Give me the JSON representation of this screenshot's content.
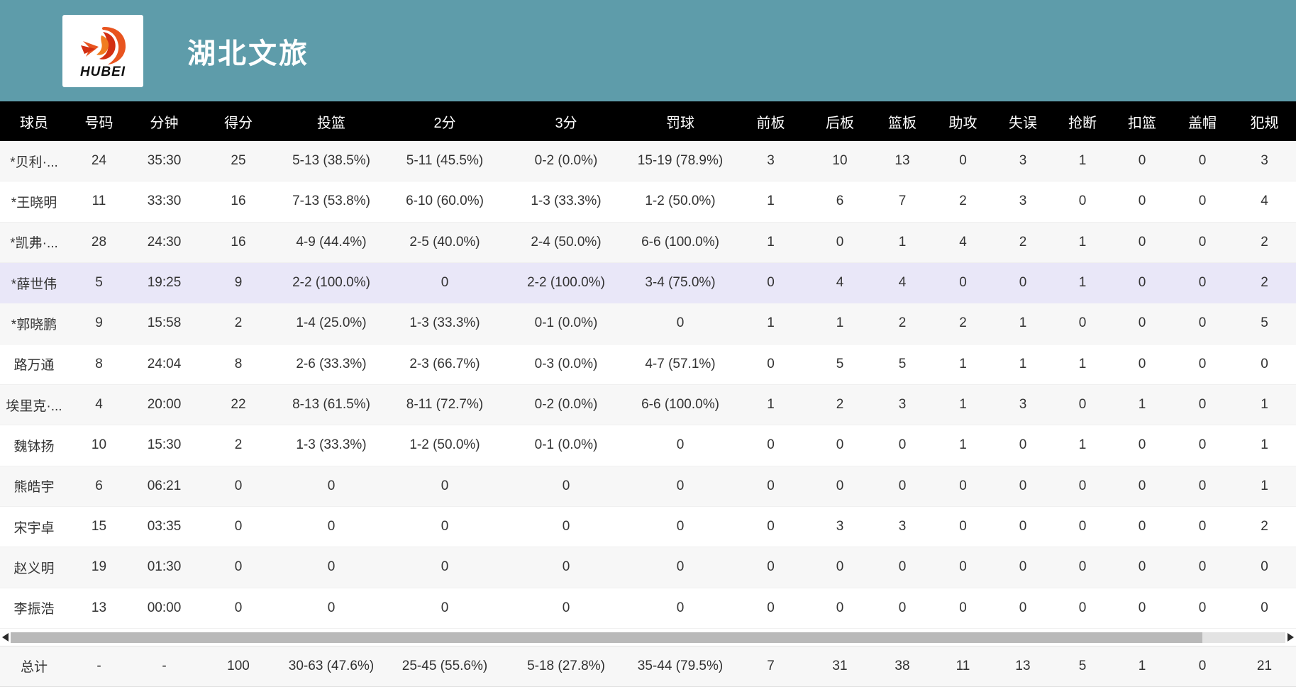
{
  "header": {
    "team_name": "湖北文旅",
    "logo_text": "HUBEI",
    "banner_color": "#5e9caa",
    "accent_orange": "#e8541f",
    "accent_red": "#d32f12"
  },
  "table": {
    "columns": [
      {
        "key": "player",
        "label": "球员"
      },
      {
        "key": "number",
        "label": "号码"
      },
      {
        "key": "minutes",
        "label": "分钟"
      },
      {
        "key": "points",
        "label": "得分"
      },
      {
        "key": "fg",
        "label": "投篮"
      },
      {
        "key": "two-pt",
        "label": "2分"
      },
      {
        "key": "three-pt",
        "label": "3分"
      },
      {
        "key": "ft",
        "label": "罚球"
      },
      {
        "key": "off-reb",
        "label": "前板"
      },
      {
        "key": "def-reb",
        "label": "后板"
      },
      {
        "key": "reb",
        "label": "篮板"
      },
      {
        "key": "ast",
        "label": "助攻"
      },
      {
        "key": "turnovers",
        "label": "失误"
      },
      {
        "key": "stl",
        "label": "抢断"
      },
      {
        "key": "dunk",
        "label": "扣篮"
      },
      {
        "key": "blk",
        "label": "盖帽"
      },
      {
        "key": "fouls",
        "label": "犯规"
      }
    ],
    "highlighted_row": 3,
    "highlight_color": "#e9e7f8",
    "rows": [
      [
        "*贝利·...",
        "24",
        "35:30",
        "25",
        "5-13 (38.5%)",
        "5-11 (45.5%)",
        "0-2 (0.0%)",
        "15-19 (78.9%)",
        "3",
        "10",
        "13",
        "0",
        "3",
        "1",
        "0",
        "0",
        "3"
      ],
      [
        "*王晓明",
        "11",
        "33:30",
        "16",
        "7-13 (53.8%)",
        "6-10 (60.0%)",
        "1-3 (33.3%)",
        "1-2 (50.0%)",
        "1",
        "6",
        "7",
        "2",
        "3",
        "0",
        "0",
        "0",
        "4"
      ],
      [
        "*凯弗·...",
        "28",
        "24:30",
        "16",
        "4-9 (44.4%)",
        "2-5 (40.0%)",
        "2-4 (50.0%)",
        "6-6 (100.0%)",
        "1",
        "0",
        "1",
        "4",
        "2",
        "1",
        "0",
        "0",
        "2"
      ],
      [
        "*薛世伟",
        "5",
        "19:25",
        "9",
        "2-2 (100.0%)",
        "0",
        "2-2 (100.0%)",
        "3-4 (75.0%)",
        "0",
        "4",
        "4",
        "0",
        "0",
        "1",
        "0",
        "0",
        "2"
      ],
      [
        "*郭晓鹏",
        "9",
        "15:58",
        "2",
        "1-4 (25.0%)",
        "1-3 (33.3%)",
        "0-1 (0.0%)",
        "0",
        "1",
        "1",
        "2",
        "2",
        "1",
        "0",
        "0",
        "0",
        "5"
      ],
      [
        "路万通",
        "8",
        "24:04",
        "8",
        "2-6 (33.3%)",
        "2-3 (66.7%)",
        "0-3 (0.0%)",
        "4-7 (57.1%)",
        "0",
        "5",
        "5",
        "1",
        "1",
        "1",
        "0",
        "0",
        "0"
      ],
      [
        "埃里克·...",
        "4",
        "20:00",
        "22",
        "8-13 (61.5%)",
        "8-11 (72.7%)",
        "0-2 (0.0%)",
        "6-6 (100.0%)",
        "1",
        "2",
        "3",
        "1",
        "3",
        "0",
        "1",
        "0",
        "1"
      ],
      [
        "魏钵扬",
        "10",
        "15:30",
        "2",
        "1-3 (33.3%)",
        "1-2 (50.0%)",
        "0-1 (0.0%)",
        "0",
        "0",
        "0",
        "0",
        "1",
        "0",
        "1",
        "0",
        "0",
        "1"
      ],
      [
        "熊皓宇",
        "6",
        "06:21",
        "0",
        "0",
        "0",
        "0",
        "0",
        "0",
        "0",
        "0",
        "0",
        "0",
        "0",
        "0",
        "0",
        "1"
      ],
      [
        "宋宇卓",
        "15",
        "03:35",
        "0",
        "0",
        "0",
        "0",
        "0",
        "0",
        "3",
        "3",
        "0",
        "0",
        "0",
        "0",
        "0",
        "2"
      ],
      [
        "赵义明",
        "19",
        "01:30",
        "0",
        "0",
        "0",
        "0",
        "0",
        "0",
        "0",
        "0",
        "0",
        "0",
        "0",
        "0",
        "0",
        "0"
      ],
      [
        "李振浩",
        "13",
        "00:00",
        "0",
        "0",
        "0",
        "0",
        "0",
        "0",
        "0",
        "0",
        "0",
        "0",
        "0",
        "0",
        "0",
        "0"
      ]
    ],
    "total_row": [
      "总计",
      "-",
      "-",
      "100",
      "30-63 (47.6%)",
      "25-45 (55.6%)",
      "5-18 (27.8%)",
      "35-44 (79.5%)",
      "7",
      "31",
      "38",
      "11",
      "13",
      "5",
      "1",
      "0",
      "21"
    ]
  }
}
